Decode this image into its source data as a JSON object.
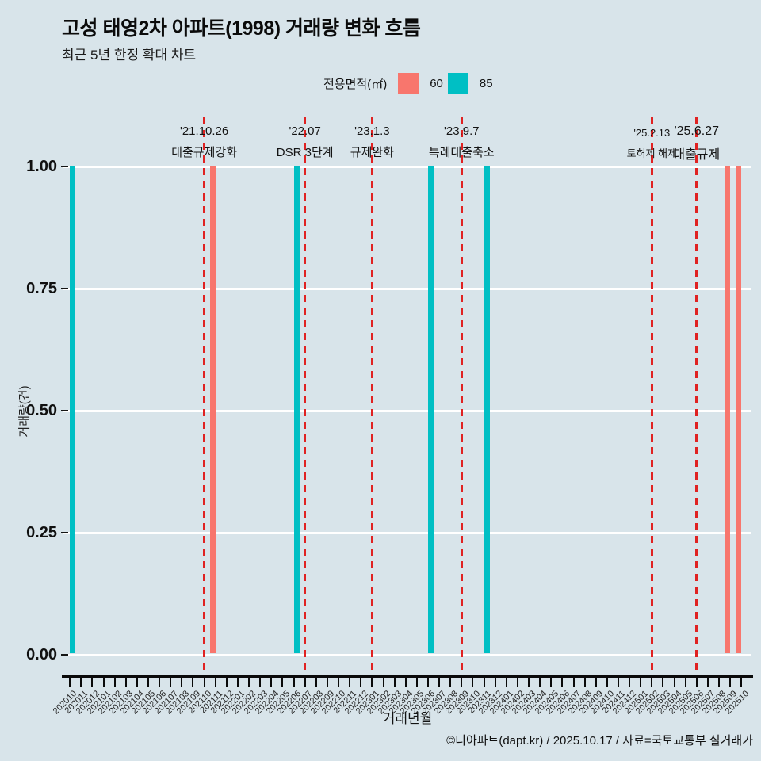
{
  "header": {
    "title": "고성 태영2차 아파트(1998) 거래량 변화 흐름",
    "subtitle": "최근 5년 한정 확대 차트"
  },
  "legend": {
    "label": "전용면적(㎡)",
    "items": [
      {
        "name": "60",
        "color": "#F8766D"
      },
      {
        "name": "85",
        "color": "#00BFC4"
      }
    ]
  },
  "footer": {
    "credit": "©디아파트(dapt.kr) / 2025.10.17 / 자료=국토교통부 실거래가"
  },
  "chart_data": {
    "type": "bar",
    "title": "고성 태영2차 아파트(1998) 거래량 변화 흐름",
    "subtitle": "최근 5년 한정 확대 차트",
    "xlabel": "거래년월",
    "ylabel": "거래량(건)",
    "ylim": [
      0,
      1
    ],
    "grid": "horizontal-white",
    "legend_position": "top",
    "background": "#d8e4ea",
    "yticks": [
      {
        "label": "1.00",
        "value": 1.0
      },
      {
        "label": "0.75",
        "value": 0.75
      },
      {
        "label": "0.50",
        "value": 0.5
      },
      {
        "label": "0.25",
        "value": 0.25
      },
      {
        "label": "0.00",
        "value": 0.0
      }
    ],
    "categories": [
      "202010",
      "202011",
      "202012",
      "202101",
      "202102",
      "202103",
      "202104",
      "202105",
      "202106",
      "202107",
      "202108",
      "202109",
      "202110",
      "202111",
      "202112",
      "202201",
      "202202",
      "202203",
      "202204",
      "202205",
      "202206",
      "202207",
      "202208",
      "202209",
      "202210",
      "202211",
      "202212",
      "202301",
      "202302",
      "202303",
      "202304",
      "202305",
      "202306",
      "202307",
      "202308",
      "202309",
      "202310",
      "202311",
      "202312",
      "202401",
      "202402",
      "202403",
      "202404",
      "202405",
      "202406",
      "202407",
      "202408",
      "202409",
      "202410",
      "202411",
      "202412",
      "202501",
      "202502",
      "202503",
      "202504",
      "202505",
      "202506",
      "202507",
      "202508",
      "202509",
      "202510"
    ],
    "series": [
      {
        "name": "60",
        "color": "#F8766D",
        "months": [
          "202111",
          "202509",
          "202510"
        ],
        "values": [
          1,
          1,
          1
        ]
      },
      {
        "name": "85",
        "color": "#00BFC4",
        "months": [
          "202010",
          "202206",
          "202306",
          "202311"
        ],
        "values": [
          1,
          1,
          1,
          1
        ]
      }
    ],
    "annotations": [
      {
        "month": "202110",
        "date": "'21.10.26",
        "label": "대출규제강화",
        "size": "md"
      },
      {
        "month": "202207",
        "date": "'22.07",
        "label": "DSR 3단계",
        "size": "md"
      },
      {
        "month": "202301",
        "date": "'23.1.3",
        "label": "규제완화",
        "size": "md"
      },
      {
        "month": "202309",
        "date": "'23.9.7",
        "label": "특례대출축소",
        "size": "md"
      },
      {
        "month": "202502",
        "date": "'25.2.13",
        "label": "토허제 해제",
        "size": "sm"
      },
      {
        "month": "202506",
        "date": "'25.6.27",
        "label": "대출규제",
        "size": "lg"
      }
    ],
    "vline_color": "#e02222"
  }
}
